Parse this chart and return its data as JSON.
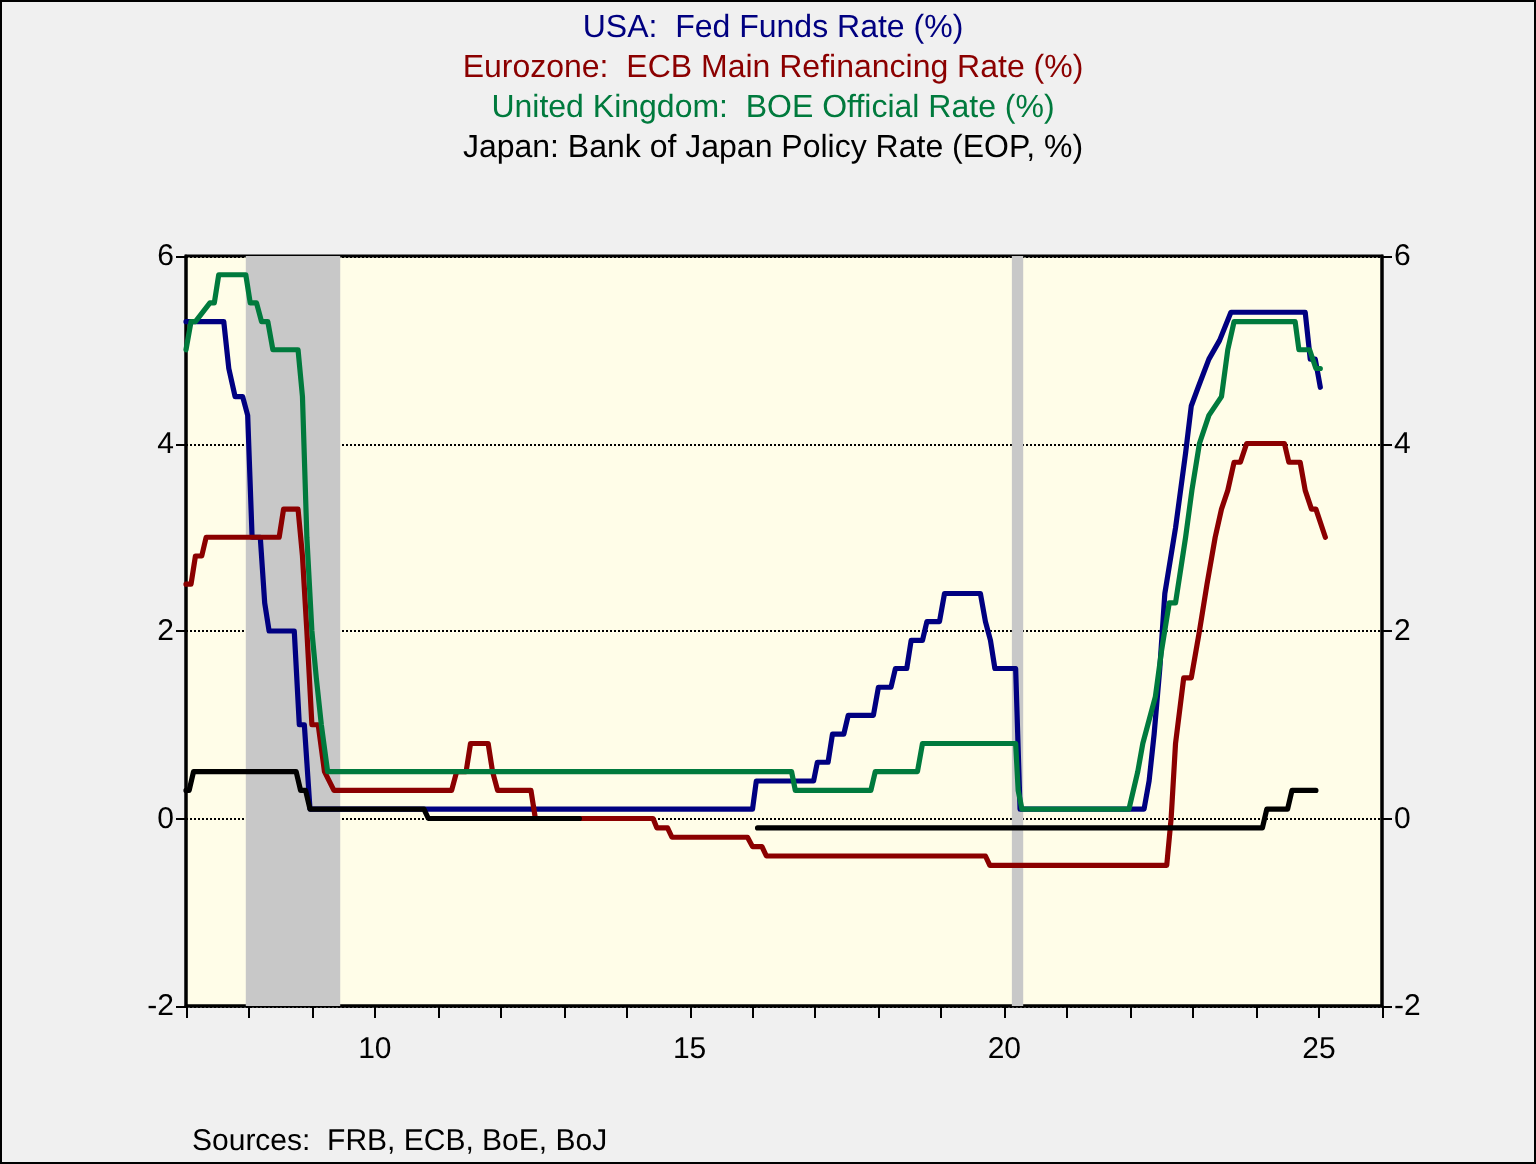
{
  "chart_data": {
    "type": "line",
    "xlim": [
      7,
      26
    ],
    "xticks": [
      {
        "value": 7,
        "label": null
      },
      {
        "value": 8,
        "label": null
      },
      {
        "value": 9,
        "label": null
      },
      10,
      {
        "value": 11,
        "label": null
      },
      {
        "value": 12,
        "label": null
      },
      {
        "value": 13,
        "label": null
      },
      {
        "value": 14,
        "label": null
      },
      15,
      {
        "value": 16,
        "label": null
      },
      {
        "value": 17,
        "label": null
      },
      {
        "value": 18,
        "label": null
      },
      {
        "value": 19,
        "label": null
      },
      20,
      {
        "value": 21,
        "label": null
      },
      {
        "value": 22,
        "label": null
      },
      {
        "value": 23,
        "label": null
      },
      {
        "value": 24,
        "label": null
      },
      25,
      {
        "value": 26,
        "label": null
      }
    ],
    "ylim": [
      -2,
      6
    ],
    "yticks": [
      -2,
      0,
      2,
      4,
      6
    ],
    "y2lim": [
      -2,
      6
    ],
    "y2ticks": [
      -2,
      0,
      2,
      4,
      6
    ],
    "grid": "y",
    "legend": "top",
    "marker": "none",
    "line_style": "solid",
    "bands": [
      {
        "axis": "x",
        "from": 7.95,
        "to": 9.45,
        "color": "#c8c8c8"
      },
      {
        "axis": "x",
        "from": 20.12,
        "to": 20.3,
        "color": "#c8c8c8"
      }
    ],
    "annotations": [
      "Sources:  FRB, ECB, BoE, BoJ"
    ],
    "series": [
      {
        "name": "USA:  Fed Funds Rate (%)",
        "color": "#000080",
        "x": [
          7.0,
          7.6,
          7.68,
          7.78,
          7.9,
          7.98,
          8.05,
          8.18,
          8.25,
          8.32,
          8.72,
          8.8,
          8.88,
          8.97,
          16.0,
          16.06,
          16.97,
          17.03,
          17.2,
          17.27,
          17.45,
          17.52,
          17.92,
          18.0,
          18.2,
          18.27,
          18.45,
          18.52,
          18.7,
          18.77,
          18.97,
          19.05,
          19.62,
          19.7,
          19.78,
          19.85,
          20.18,
          20.25,
          22.22,
          22.3,
          22.38,
          22.47,
          22.55,
          22.72,
          22.88,
          22.97,
          23.08,
          23.25,
          23.42,
          23.6,
          24.78,
          24.86,
          24.94,
          25.02
        ],
        "values": [
          5.3,
          5.3,
          4.8,
          4.5,
          4.5,
          4.3,
          3.0,
          3.0,
          2.3,
          2.0,
          2.0,
          1.0,
          1.0,
          0.1,
          0.1,
          0.4,
          0.4,
          0.6,
          0.6,
          0.9,
          0.9,
          1.1,
          1.1,
          1.4,
          1.4,
          1.6,
          1.6,
          1.9,
          1.9,
          2.1,
          2.1,
          2.4,
          2.4,
          2.1,
          1.9,
          1.6,
          1.6,
          0.1,
          0.1,
          0.4,
          0.9,
          1.6,
          2.4,
          3.1,
          3.9,
          4.4,
          4.6,
          4.9,
          5.1,
          5.4,
          5.4,
          4.9,
          4.9,
          4.6
        ]
      },
      {
        "name": "Eurozone:  ECB Main Refinancing Rate (%)",
        "color": "#8b0000",
        "x": [
          7.0,
          7.08,
          7.15,
          7.25,
          7.32,
          8.48,
          8.55,
          8.78,
          8.85,
          8.92,
          9.0,
          9.1,
          9.2,
          9.35,
          11.22,
          11.3,
          11.45,
          11.52,
          11.8,
          11.87,
          11.95,
          12.48,
          12.55,
          14.42,
          14.48,
          14.65,
          14.72,
          15.92,
          16.0,
          16.15,
          16.22,
          19.7,
          19.77,
          22.58,
          22.65,
          22.72,
          22.85,
          22.97,
          23.1,
          23.22,
          23.35,
          23.45,
          23.55,
          23.65,
          23.75,
          23.85,
          24.45,
          24.52,
          24.7,
          24.78,
          24.88,
          24.95,
          25.1
        ],
        "values": [
          2.5,
          2.5,
          2.8,
          2.8,
          3.0,
          3.0,
          3.3,
          3.3,
          2.8,
          2.0,
          1.0,
          1.0,
          0.5,
          0.3,
          0.3,
          0.5,
          0.5,
          0.8,
          0.8,
          0.5,
          0.3,
          0.3,
          0.0,
          0.0,
          -0.1,
          -0.1,
          -0.2,
          -0.2,
          -0.3,
          -0.3,
          -0.4,
          -0.4,
          -0.5,
          -0.5,
          0.0,
          0.8,
          1.5,
          1.5,
          2.0,
          2.5,
          3.0,
          3.3,
          3.5,
          3.8,
          3.8,
          4.0,
          4.0,
          3.8,
          3.8,
          3.5,
          3.3,
          3.3,
          3.0
        ]
      },
      {
        "name": "United Kingdom:  BOE Official Rate (%)",
        "color": "#007a3d",
        "x": [
          7.0,
          7.08,
          7.15,
          7.38,
          7.45,
          7.52,
          7.95,
          8.02,
          8.12,
          8.2,
          8.3,
          8.38,
          8.78,
          8.85,
          8.92,
          9.0,
          9.07,
          9.15,
          9.25,
          16.62,
          16.68,
          17.88,
          17.95,
          18.62,
          18.7,
          20.18,
          20.22,
          20.28,
          21.98,
          22.05,
          22.12,
          22.2,
          22.28,
          22.4,
          22.5,
          22.62,
          22.72,
          22.88,
          22.98,
          23.1,
          23.25,
          23.45,
          23.55,
          23.65,
          24.62,
          24.68,
          24.85,
          24.95,
          25.02
        ],
        "values": [
          5.0,
          5.3,
          5.3,
          5.5,
          5.5,
          5.8,
          5.8,
          5.5,
          5.5,
          5.3,
          5.3,
          5.0,
          5.0,
          4.5,
          3.0,
          2.0,
          1.5,
          1.0,
          0.5,
          0.5,
          0.3,
          0.3,
          0.5,
          0.5,
          0.8,
          0.8,
          0.3,
          0.1,
          0.1,
          0.3,
          0.5,
          0.8,
          1.0,
          1.3,
          1.8,
          2.3,
          2.3,
          3.0,
          3.5,
          4.0,
          4.3,
          4.5,
          5.0,
          5.3,
          5.3,
          5.0,
          5.0,
          4.8,
          4.8
        ]
      },
      {
        "name": "Japan: Bank of Japan Policy Rate (EOP, %)",
        "color": "#000000",
        "x": [
          7.0,
          7.05,
          7.12,
          8.75,
          8.82,
          8.9,
          8.97,
          10.78,
          10.85,
          13.25,
          13.3,
          16.08,
          24.1,
          24.17,
          24.5,
          24.57,
          24.95
        ],
        "values": [
          0.3,
          0.3,
          0.5,
          0.5,
          0.3,
          0.3,
          0.1,
          0.1,
          0.0,
          0.0,
          null,
          -0.1,
          -0.1,
          0.1,
          0.1,
          0.3,
          0.3
        ]
      }
    ]
  }
}
